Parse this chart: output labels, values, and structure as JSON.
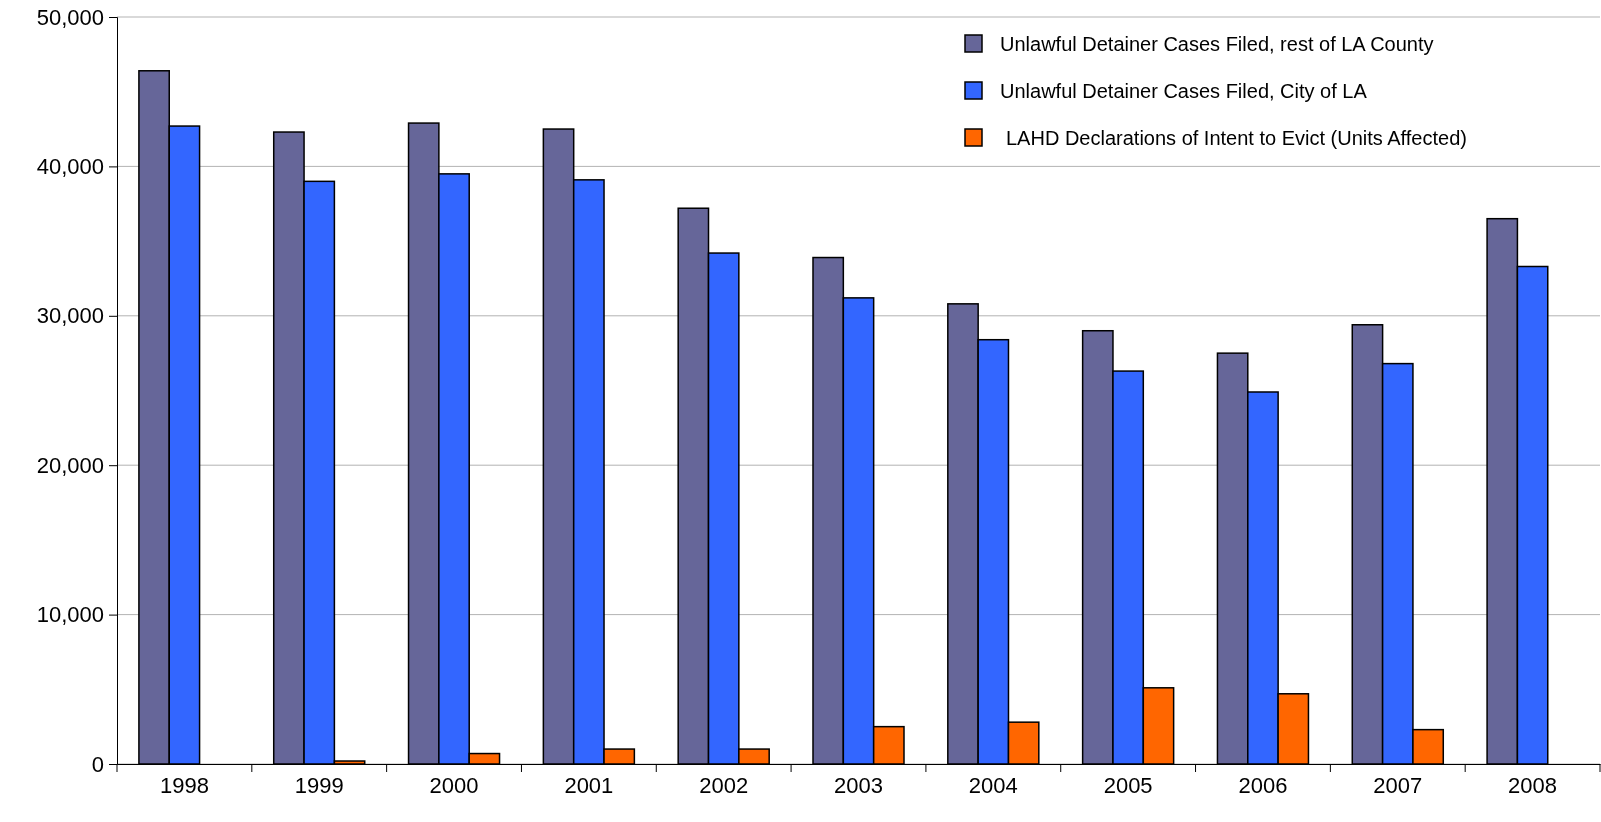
{
  "chart_data": {
    "type": "bar",
    "categories": [
      "1998",
      "1999",
      "2000",
      "2001",
      "2002",
      "2003",
      "2004",
      "2005",
      "2006",
      "2007",
      "2008"
    ],
    "series": [
      {
        "name": "Unlawful Detainer Cases Filed, rest of LA County",
        "color": "#666699",
        "values": [
          46400,
          42300,
          42900,
          42500,
          37200,
          33900,
          30800,
          29000,
          27500,
          29400,
          36500
        ]
      },
      {
        "name": "Unlawful Detainer Cases Filed, City of LA",
        "color": "#3366ff",
        "values": [
          42700,
          39000,
          39500,
          39100,
          34200,
          31200,
          28400,
          26300,
          24900,
          26800,
          33300
        ]
      },
      {
        "name": "LAHD Declarations of Intent to Evict (Units Affected)",
        "color": "#ff6600",
        "values": [
          null,
          200,
          700,
          1000,
          1000,
          2500,
          2800,
          5100,
          4700,
          2300,
          null
        ]
      }
    ],
    "ylim": [
      0,
      50000
    ],
    "yticks": [
      {
        "value": 0,
        "label": "0"
      },
      {
        "value": 10000,
        "label": "10,000"
      },
      {
        "value": 20000,
        "label": "20,000"
      },
      {
        "value": 30000,
        "label": "30,000"
      },
      {
        "value": 40000,
        "label": "40,000"
      },
      {
        "value": 50000,
        "label": "50,000"
      }
    ],
    "grid": "y",
    "legend": "top right"
  }
}
